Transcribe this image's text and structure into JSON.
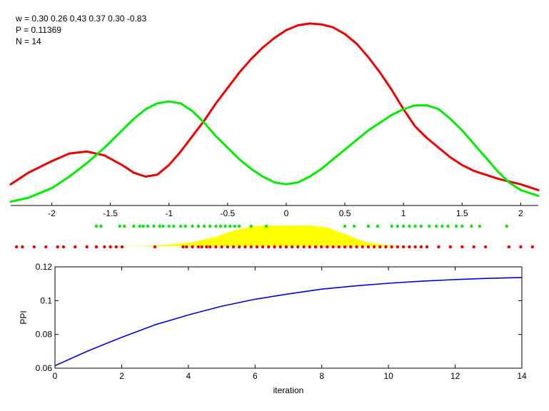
{
  "annotations": {
    "w": "w = 0.30  0.26  0.43  0.37  0.30  -0.83",
    "p": "P = 0.11369",
    "n": "N = 14"
  },
  "chart_data": [
    {
      "type": "line",
      "title": "",
      "xlabel": "",
      "ylabel": "",
      "xlim": [
        -2.35,
        2.15
      ],
      "xticks": [
        -2,
        -1.5,
        -1,
        -0.5,
        0,
        0.5,
        1,
        1.5,
        2
      ],
      "xtick_labels": [
        "-2",
        "-1.5",
        "-1",
        "-0.5",
        "0",
        "0.5",
        "1",
        "1.5",
        "2"
      ],
      "colors": {
        "red_curve": "#ee0000",
        "green_curve": "#00ee00"
      },
      "series": [
        {
          "color": "#ee0000",
          "x": [
            -2.35,
            -2.2,
            -2.0,
            -1.85,
            -1.7,
            -1.55,
            -1.4,
            -1.3,
            -1.2,
            -1.1,
            -1.0,
            -0.9,
            -0.8,
            -0.7,
            -0.6,
            -0.5,
            -0.4,
            -0.3,
            -0.2,
            -0.1,
            0.0,
            0.1,
            0.2,
            0.3,
            0.4,
            0.5,
            0.6,
            0.7,
            0.8,
            0.9,
            1.0,
            1.1,
            1.2,
            1.3,
            1.4,
            1.5,
            1.6,
            1.7,
            1.8,
            1.9,
            2.0,
            2.15
          ],
          "y": [
            0.11,
            0.17,
            0.23,
            0.27,
            0.28,
            0.26,
            0.21,
            0.17,
            0.15,
            0.16,
            0.21,
            0.28,
            0.36,
            0.44,
            0.53,
            0.61,
            0.69,
            0.76,
            0.82,
            0.87,
            0.91,
            0.935,
            0.945,
            0.94,
            0.925,
            0.89,
            0.84,
            0.77,
            0.69,
            0.6,
            0.5,
            0.41,
            0.35,
            0.3,
            0.25,
            0.21,
            0.18,
            0.16,
            0.14,
            0.125,
            0.11,
            0.08
          ]
        },
        {
          "color": "#00ee00",
          "x": [
            -2.35,
            -2.2,
            -2.0,
            -1.85,
            -1.7,
            -1.55,
            -1.4,
            -1.3,
            -1.2,
            -1.1,
            -1.0,
            -0.9,
            -0.8,
            -0.7,
            -0.6,
            -0.5,
            -0.4,
            -0.3,
            -0.2,
            -0.1,
            0.0,
            0.1,
            0.2,
            0.3,
            0.4,
            0.5,
            0.6,
            0.7,
            0.8,
            0.9,
            1.0,
            1.1,
            1.2,
            1.3,
            1.4,
            1.5,
            1.6,
            1.7,
            1.8,
            1.9,
            2.0,
            2.15
          ],
          "y": [
            0.02,
            0.04,
            0.09,
            0.15,
            0.22,
            0.3,
            0.39,
            0.45,
            0.5,
            0.53,
            0.54,
            0.53,
            0.49,
            0.43,
            0.36,
            0.3,
            0.24,
            0.19,
            0.15,
            0.12,
            0.11,
            0.12,
            0.15,
            0.19,
            0.24,
            0.29,
            0.34,
            0.39,
            0.43,
            0.47,
            0.5,
            0.52,
            0.52,
            0.5,
            0.45,
            0.39,
            0.32,
            0.25,
            0.18,
            0.12,
            0.08,
            0.05
          ]
        }
      ],
      "green_points_x": [
        -1.62,
        -1.58,
        -1.42,
        -1.38,
        -1.3,
        -1.25,
        -1.22,
        -1.18,
        -1.13,
        -1.08,
        -1.05,
        -1.0,
        -0.96,
        -0.9,
        -0.86,
        -0.8,
        -0.75,
        -0.7,
        -0.65,
        -0.6,
        -0.56,
        -0.52,
        -0.48,
        -0.44,
        -0.4,
        -0.3,
        -0.17,
        0.5,
        0.58,
        0.7,
        0.78,
        0.9,
        0.95,
        1.0,
        1.05,
        1.1,
        1.15,
        1.22,
        1.28,
        1.33,
        1.38,
        1.45,
        1.5,
        1.58,
        1.65,
        1.88
      ],
      "red_points_x": [
        -2.3,
        -2.25,
        -2.15,
        -2.05,
        -1.95,
        -1.9,
        -1.8,
        -1.7,
        -1.62,
        -1.55,
        -1.5,
        -1.45,
        -1.4,
        -1.12,
        -0.88,
        -0.85,
        -0.8,
        -0.75,
        -0.72,
        -0.68,
        -0.65,
        -0.6,
        -0.55,
        -0.5,
        -0.45,
        -0.4,
        -0.35,
        -0.3,
        -0.25,
        -0.2,
        -0.15,
        -0.1,
        -0.05,
        0.0,
        0.05,
        0.1,
        0.15,
        0.2,
        0.25,
        0.3,
        0.35,
        0.4,
        0.45,
        0.5,
        0.55,
        0.6,
        0.65,
        0.7,
        0.75,
        0.8,
        0.85,
        0.9,
        0.95,
        1.0,
        1.05,
        1.1,
        1.15,
        1.2,
        1.3,
        1.4,
        1.5,
        1.6,
        1.7,
        1.9,
        2.0,
        2.1
      ],
      "fill_area": {
        "color": "#ffff00",
        "x": [
          -1.45,
          -1.2,
          -1.0,
          -0.8,
          -0.6,
          -0.45,
          -0.3,
          -0.2,
          0.0,
          0.2,
          0.35,
          0.5,
          0.6,
          0.7,
          0.85,
          1.0
        ],
        "y": [
          0.0,
          0.02,
          0.08,
          0.2,
          0.45,
          0.75,
          0.93,
          1.0,
          1.0,
          1.0,
          0.9,
          0.6,
          0.35,
          0.18,
          0.06,
          0.0
        ]
      }
    },
    {
      "type": "line",
      "title": "",
      "xlabel": "iteration",
      "ylabel": "PPI",
      "xlim": [
        0,
        14
      ],
      "ylim": [
        0.06,
        0.12
      ],
      "xticks": [
        0,
        2,
        4,
        6,
        8,
        10,
        12,
        14
      ],
      "xtick_labels": [
        "0",
        "2",
        "4",
        "6",
        "8",
        "10",
        "12",
        "14"
      ],
      "yticks": [
        0.06,
        0.08,
        0.1,
        0.12
      ],
      "ytick_labels": [
        "0.06",
        "0.08",
        "0.1",
        "0.12"
      ],
      "series": [
        {
          "color": "#0000dd",
          "x": [
            0,
            1,
            2,
            3,
            4,
            5,
            6,
            7,
            8,
            9,
            10,
            11,
            12,
            13,
            14
          ],
          "y": [
            0.0615,
            0.0703,
            0.0783,
            0.0857,
            0.0915,
            0.0967,
            0.1008,
            0.104,
            0.1068,
            0.1087,
            0.1103,
            0.1115,
            0.1125,
            0.1132,
            0.1137
          ]
        }
      ]
    }
  ]
}
